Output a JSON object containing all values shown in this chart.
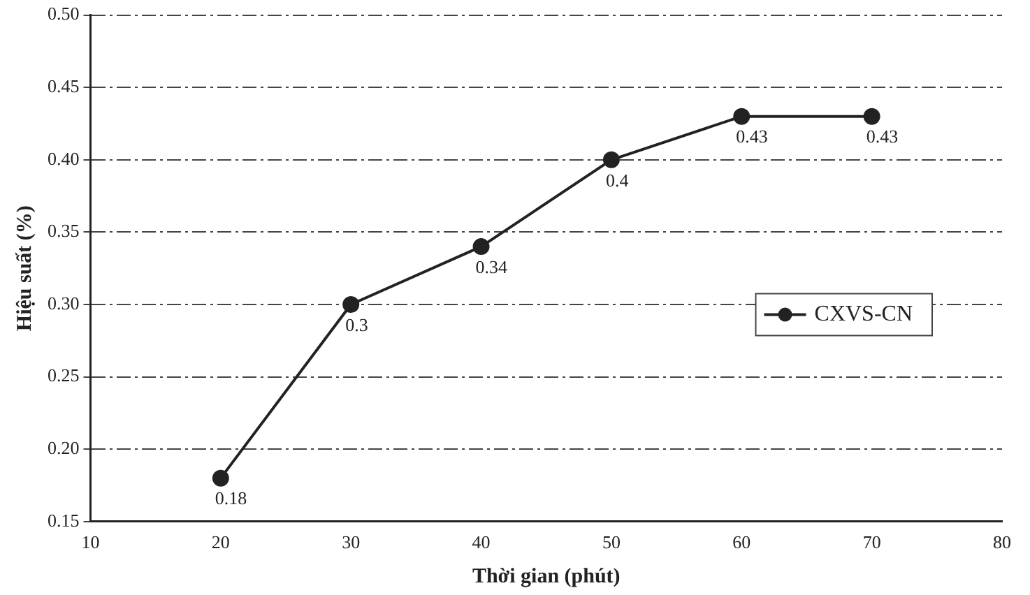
{
  "chart_data": {
    "type": "line",
    "xlabel": "Thời gian (phút)",
    "ylabel": "Hiệu suất (%)",
    "x": [
      20,
      30,
      40,
      50,
      60,
      70
    ],
    "series": [
      {
        "name": "CXVS-CN",
        "color": "#222222",
        "values": [
          0.18,
          0.3,
          0.34,
          0.4,
          0.43,
          0.43
        ]
      }
    ],
    "xlim": [
      10,
      80
    ],
    "xticks": [
      10,
      20,
      30,
      40,
      50,
      60,
      70,
      80
    ],
    "ylim": [
      0.15,
      0.5
    ],
    "yticks": [
      0.15,
      {
        "value": 0.2,
        "label": "0.20"
      },
      0.25,
      {
        "value": 0.3,
        "label": "0.30"
      },
      0.35,
      {
        "value": 0.4,
        "label": "0.40"
      },
      0.45,
      {
        "value": 0.5,
        "label": "0.50"
      }
    ],
    "grid": "y",
    "legend": "center right",
    "marker": "circle",
    "line_style": "solid",
    "data_labels": true
  }
}
